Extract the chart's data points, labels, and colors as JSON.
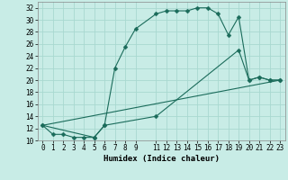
{
  "xlabel": "Humidex (Indice chaleur)",
  "bg_color": "#c8ece6",
  "grid_color": "#a8d8d0",
  "line_color": "#1a6b5a",
  "xlim": [
    -0.5,
    23.5
  ],
  "ylim": [
    10,
    33
  ],
  "xticks": [
    0,
    1,
    2,
    3,
    4,
    5,
    6,
    7,
    8,
    9,
    11,
    12,
    13,
    14,
    15,
    16,
    17,
    18,
    19,
    20,
    21,
    22,
    23
  ],
  "yticks": [
    10,
    12,
    14,
    16,
    18,
    20,
    22,
    24,
    26,
    28,
    30,
    32
  ],
  "curve1_x": [
    0,
    1,
    2,
    3,
    4,
    5,
    6,
    7,
    8,
    9,
    11,
    12,
    13,
    14,
    15,
    16,
    17,
    18,
    19,
    20,
    21,
    22,
    23
  ],
  "curve1_y": [
    12.5,
    11.0,
    11.0,
    10.5,
    10.5,
    10.5,
    12.5,
    22.0,
    25.5,
    28.5,
    31.0,
    31.5,
    31.5,
    31.5,
    32.0,
    32.0,
    31.0,
    27.5,
    30.5,
    20.0,
    20.5,
    20.0,
    20.0
  ],
  "curve2_x": [
    0,
    5,
    6,
    11,
    19,
    20,
    21,
    22,
    23
  ],
  "curve2_y": [
    12.5,
    10.5,
    12.5,
    14.0,
    25.0,
    20.0,
    20.5,
    20.0,
    20.0
  ],
  "curve3_x": [
    0,
    23
  ],
  "curve3_y": [
    12.5,
    20.0
  ]
}
